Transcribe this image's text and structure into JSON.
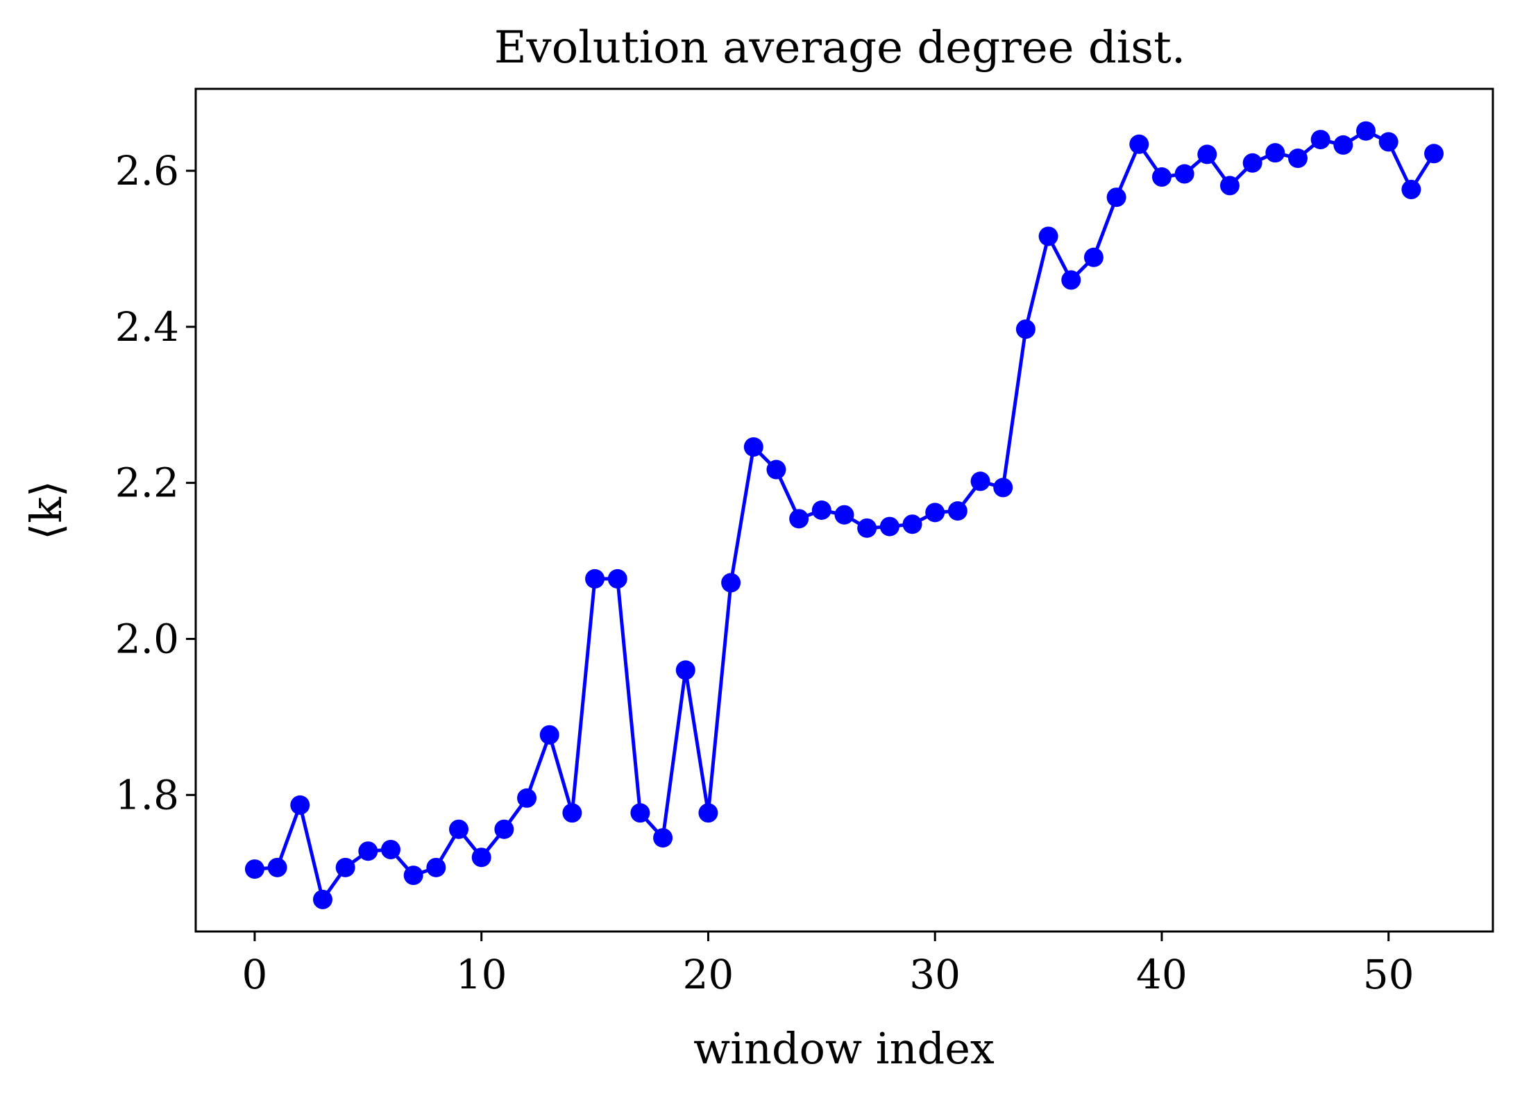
{
  "chart_data": {
    "type": "line",
    "title": "Evolution average degree dist.",
    "xlabel": "window index",
    "ylabel": "⟨k⟩",
    "xlim": [
      -2.6,
      54.6
    ],
    "ylim": [
      1.625,
      2.705
    ],
    "xticks": [
      0,
      10,
      20,
      30,
      40,
      50
    ],
    "xtick_labels": [
      "0",
      "10",
      "20",
      "30",
      "40",
      "50"
    ],
    "yticks": [
      1.8,
      2.0,
      2.2,
      2.4,
      2.6
    ],
    "ytick_labels": [
      "1.8",
      "2.0",
      "2.2",
      "2.4",
      "2.6"
    ],
    "grid": false,
    "color": "#0000ff",
    "series": [
      {
        "x": [
          0,
          1,
          2,
          3,
          4,
          5,
          6,
          7,
          8,
          9,
          10,
          11,
          12,
          13,
          14,
          15,
          16,
          17,
          18,
          19,
          20,
          21,
          22,
          23,
          24,
          25,
          26,
          27,
          28,
          29,
          30,
          31,
          32,
          33,
          34,
          35,
          36,
          37,
          38,
          39,
          40,
          41,
          42,
          43,
          44,
          45,
          46,
          47,
          48,
          49,
          50,
          51,
          52
        ],
        "values": [
          1.705,
          1.707,
          1.787,
          1.666,
          1.707,
          1.728,
          1.73,
          1.697,
          1.707,
          1.756,
          1.72,
          1.756,
          1.796,
          1.877,
          1.777,
          2.077,
          2.077,
          1.777,
          1.745,
          1.96,
          1.777,
          2.072,
          2.246,
          2.217,
          2.154,
          2.165,
          2.159,
          2.142,
          2.144,
          2.147,
          2.162,
          2.164,
          2.202,
          2.194,
          2.397,
          2.516,
          2.46,
          2.489,
          2.566,
          2.634,
          2.592,
          2.596,
          2.621,
          2.581,
          2.61,
          2.623,
          2.616,
          2.64,
          2.633,
          2.651,
          2.637,
          2.576,
          2.622
        ]
      }
    ]
  }
}
